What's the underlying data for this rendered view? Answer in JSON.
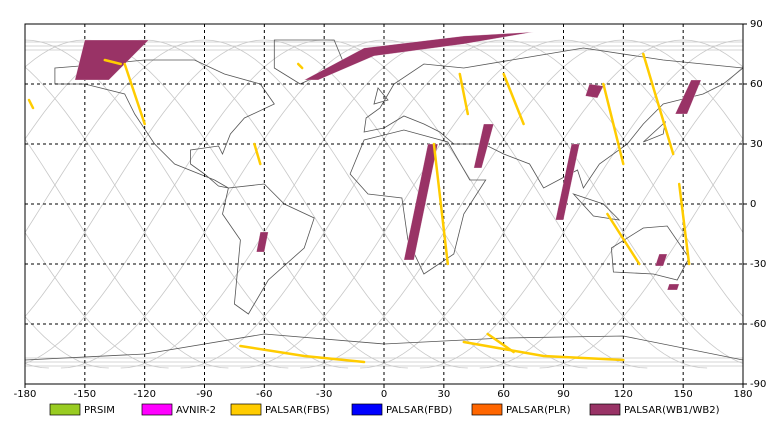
{
  "map": {
    "xlim": [
      -180,
      180
    ],
    "ylim": [
      -90,
      90
    ],
    "xticks": [
      -180,
      -150,
      -120,
      -90,
      -60,
      -30,
      0,
      30,
      60,
      90,
      120,
      150,
      180
    ],
    "yticks": [
      90,
      60,
      30,
      0,
      -30,
      -60,
      -90
    ],
    "grid": true,
    "legend": [
      {
        "name": "PRSIM",
        "color": "#99cc22"
      },
      {
        "name": "AVNIR-2",
        "color": "#ff00ff"
      },
      {
        "name": "PALSAR(FBS)",
        "color": "#ffcc00"
      },
      {
        "name": "PALSAR(FBD)",
        "color": "#0000ff"
      },
      {
        "name": "PALSAR(PLR)",
        "color": "#ff6600"
      },
      {
        "name": "PALSAR(WB1/WB2)",
        "color": "#993366"
      }
    ]
  }
}
